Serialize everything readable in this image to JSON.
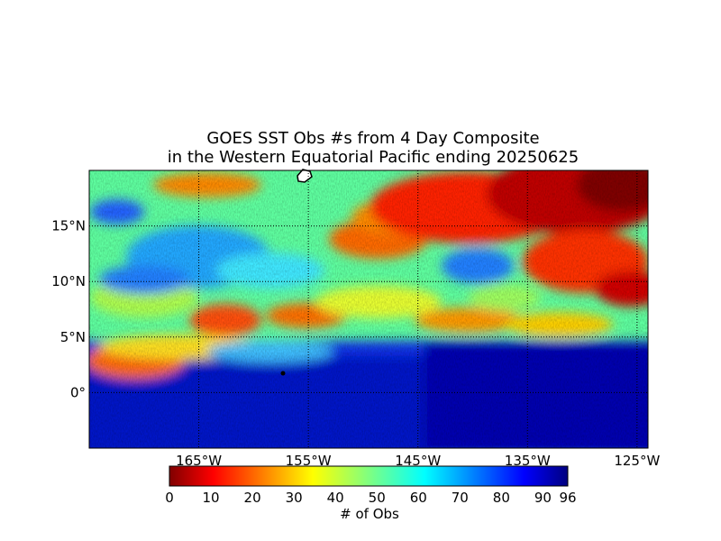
{
  "chart_data": {
    "type": "heatmap",
    "title": "GOES SST Obs #s from 4 Day Composite",
    "subtitle": "in the Western Equatorial Pacific ending 20250625",
    "x_ticks": [
      "165°W",
      "155°W",
      "145°W",
      "135°W",
      "125°W"
    ],
    "x_tick_values": [
      -165,
      -155,
      -145,
      -135,
      -125
    ],
    "y_ticks": [
      "15°N",
      "10°N",
      "5°N",
      "0°"
    ],
    "y_tick_values": [
      15,
      10,
      5,
      0
    ],
    "xlim": [
      -175,
      -124
    ],
    "ylim": [
      -5,
      20
    ],
    "grid": true,
    "colorbar": {
      "label": "# of Obs",
      "ticks": [
        "0",
        "10",
        "20",
        "30",
        "40",
        "50",
        "60",
        "70",
        "80",
        "90",
        "96"
      ],
      "tick_values": [
        0,
        10,
        20,
        30,
        40,
        50,
        60,
        70,
        80,
        90,
        96
      ],
      "range": [
        0,
        96
      ],
      "colormap": "jet_reversed"
    },
    "regions": [
      {
        "area": "north-east (125°W–140°W, 13°N–20°N)",
        "obs": 5
      },
      {
        "area": "north-central (140°W–155°W, 14°N–20°N)",
        "obs": 15
      },
      {
        "area": "north-west (155°W–175°W, 10°N–20°N)",
        "obs": 50
      },
      {
        "area": "central band (5°N–10°N)",
        "obs": 40
      },
      {
        "area": "equatorial band (5°S–4°N)",
        "obs": 85
      }
    ],
    "colors": {
      "low": "#800000",
      "mid": "#80ff80",
      "high": "#000080"
    }
  }
}
